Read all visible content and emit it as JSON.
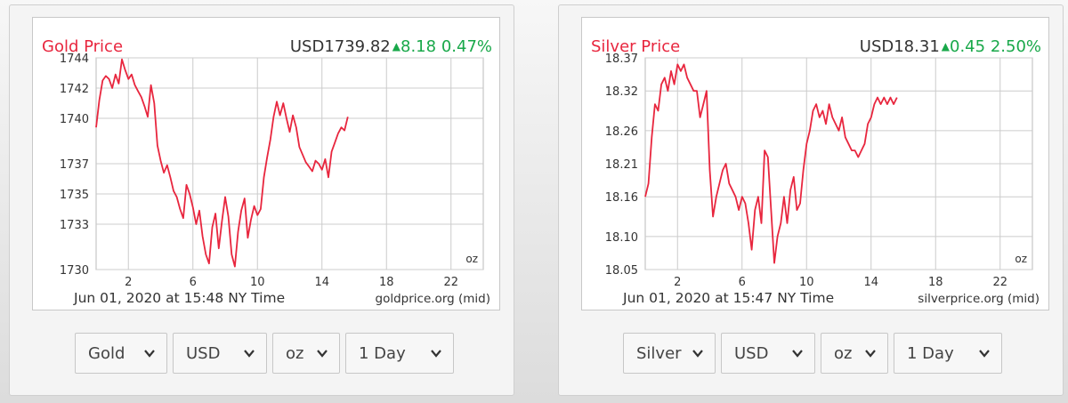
{
  "gold": {
    "title": "Gold Price",
    "currency_label": "USD",
    "price": "1739.82",
    "change": "8.18",
    "change_pct": "0.47%",
    "unit_label": "oz",
    "timestamp": "Jun 01, 2020 at 15:48 NY Time",
    "source": "goldprice.org (mid)",
    "selects": {
      "metal": "Gold",
      "currency": "USD",
      "unit": "oz",
      "range": "1 Day"
    }
  },
  "silver": {
    "title": "Silver Price",
    "currency_label": "USD",
    "price": "18.31",
    "change": "0.45",
    "change_pct": "2.50%",
    "unit_label": "oz",
    "timestamp": "Jun 01, 2020 at 15:47 NY Time",
    "source": "silverprice.org (mid)",
    "selects": {
      "metal": "Silver",
      "currency": "USD",
      "unit": "oz",
      "range": "1 Day"
    }
  },
  "colors": {
    "line": "#e8263e",
    "title": "#e8263e",
    "up": "#19a84a",
    "grid": "#cccccc"
  },
  "chart_data": [
    {
      "type": "line",
      "title": "Gold Price",
      "xlabel": "",
      "ylabel": "",
      "grid": true,
      "xlim": [
        0,
        24
      ],
      "xticks": [
        2,
        6,
        10,
        14,
        18,
        22
      ],
      "ylim": [
        1730,
        1744
      ],
      "yticks": [
        1730,
        1733,
        1735,
        1737,
        1740,
        1742,
        1744
      ],
      "x": [
        0,
        0.2,
        0.4,
        0.6,
        0.8,
        1.0,
        1.2,
        1.4,
        1.6,
        1.8,
        2.0,
        2.2,
        2.4,
        2.6,
        2.8,
        3.0,
        3.2,
        3.4,
        3.6,
        3.8,
        4.0,
        4.2,
        4.4,
        4.6,
        4.8,
        5.0,
        5.2,
        5.4,
        5.6,
        5.8,
        6.0,
        6.2,
        6.4,
        6.6,
        6.8,
        7.0,
        7.2,
        7.4,
        7.6,
        7.8,
        8.0,
        8.2,
        8.4,
        8.6,
        8.8,
        9.0,
        9.2,
        9.4,
        9.6,
        9.8,
        10.0,
        10.2,
        10.4,
        10.6,
        10.8,
        11.0,
        11.2,
        11.4,
        11.6,
        11.8,
        12.0,
        12.2,
        12.4,
        12.6,
        12.8,
        13.0,
        13.2,
        13.4,
        13.6,
        13.8,
        14.0,
        14.2,
        14.4,
        14.6,
        14.8,
        15.0,
        15.2,
        15.4,
        15.6
      ],
      "y": [
        1739.4,
        1741.2,
        1742.5,
        1742.8,
        1742.6,
        1742.0,
        1742.9,
        1742.3,
        1743.9,
        1743.2,
        1742.6,
        1742.9,
        1742.2,
        1741.8,
        1741.4,
        1740.8,
        1740.1,
        1742.2,
        1741.0,
        1738.2,
        1737.2,
        1736.4,
        1736.9,
        1736.1,
        1735.2,
        1734.8,
        1734.0,
        1733.4,
        1735.6,
        1735.0,
        1734.1,
        1733.0,
        1733.9,
        1732.2,
        1731.0,
        1730.4,
        1732.8,
        1733.7,
        1731.4,
        1733.2,
        1734.8,
        1733.5,
        1731.0,
        1730.2,
        1732.5,
        1733.9,
        1734.7,
        1732.1,
        1733.3,
        1734.2,
        1733.6,
        1734.0,
        1736.1,
        1737.4,
        1738.6,
        1740.1,
        1741.1,
        1740.2,
        1741.0,
        1740.0,
        1739.1,
        1740.2,
        1739.4,
        1738.1,
        1737.6,
        1737.1,
        1736.8,
        1736.5,
        1737.2,
        1737.0,
        1736.6,
        1737.3,
        1736.1,
        1737.8,
        1738.4,
        1739.0,
        1739.4,
        1739.2,
        1740.1
      ]
    },
    {
      "type": "line",
      "title": "Silver Price",
      "xlabel": "",
      "ylabel": "",
      "grid": true,
      "xlim": [
        0,
        24
      ],
      "xticks": [
        2,
        6,
        10,
        14,
        18,
        22
      ],
      "ylim": [
        18.05,
        18.37
      ],
      "yticks": [
        18.05,
        18.1,
        18.16,
        18.21,
        18.26,
        18.32,
        18.37
      ],
      "x": [
        0,
        0.2,
        0.4,
        0.6,
        0.8,
        1.0,
        1.2,
        1.4,
        1.6,
        1.8,
        2.0,
        2.2,
        2.4,
        2.6,
        2.8,
        3.0,
        3.2,
        3.4,
        3.6,
        3.8,
        4.0,
        4.2,
        4.4,
        4.6,
        4.8,
        5.0,
        5.2,
        5.4,
        5.6,
        5.8,
        6.0,
        6.2,
        6.4,
        6.6,
        6.8,
        7.0,
        7.2,
        7.4,
        7.6,
        7.8,
        8.0,
        8.2,
        8.4,
        8.6,
        8.8,
        9.0,
        9.2,
        9.4,
        9.6,
        9.8,
        10.0,
        10.2,
        10.4,
        10.6,
        10.8,
        11.0,
        11.2,
        11.4,
        11.6,
        11.8,
        12.0,
        12.2,
        12.4,
        12.6,
        12.8,
        13.0,
        13.2,
        13.4,
        13.6,
        13.8,
        14.0,
        14.2,
        14.4,
        14.6,
        14.8,
        15.0,
        15.2,
        15.4,
        15.6
      ],
      "y": [
        18.16,
        18.18,
        18.25,
        18.3,
        18.29,
        18.33,
        18.34,
        18.32,
        18.35,
        18.33,
        18.36,
        18.35,
        18.36,
        18.34,
        18.33,
        18.32,
        18.32,
        18.28,
        18.3,
        18.32,
        18.2,
        18.13,
        18.16,
        18.18,
        18.2,
        18.21,
        18.18,
        18.17,
        18.16,
        18.14,
        18.16,
        18.15,
        18.12,
        18.08,
        18.14,
        18.16,
        18.12,
        18.23,
        18.22,
        18.14,
        18.06,
        18.1,
        18.12,
        18.16,
        18.12,
        18.17,
        18.19,
        18.14,
        18.15,
        18.2,
        18.24,
        18.26,
        18.29,
        18.3,
        18.28,
        18.29,
        18.27,
        18.3,
        18.28,
        18.27,
        18.26,
        18.28,
        18.25,
        18.24,
        18.23,
        18.23,
        18.22,
        18.23,
        18.24,
        18.27,
        18.28,
        18.3,
        18.31,
        18.3,
        18.31,
        18.3,
        18.31,
        18.3,
        18.31
      ]
    }
  ]
}
